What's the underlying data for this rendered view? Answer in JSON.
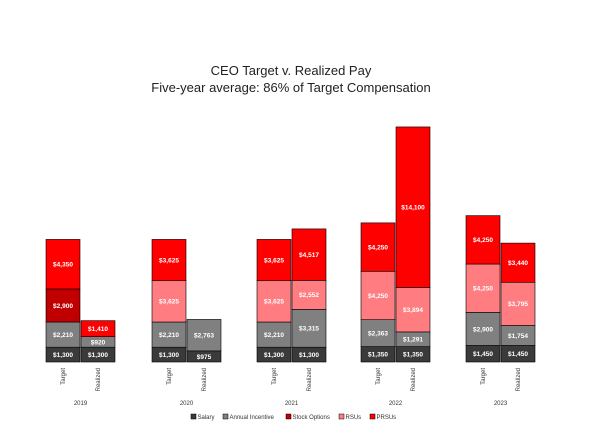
{
  "chart_data": {
    "type": "bar",
    "stacked": true,
    "title": "CEO Target v. Realized Pay",
    "subtitle": "Five-year average: 86% of Target Compensation",
    "groups": [
      "2019",
      "2020",
      "2021",
      "2022",
      "2023"
    ],
    "bar_kinds": [
      "Target",
      "Realized"
    ],
    "series": [
      {
        "name": "Salary",
        "color": "#3a3a3a",
        "values": [
          1300,
          1300,
          1300,
          975,
          1300,
          1300,
          1350,
          1350,
          1450,
          1450
        ],
        "labels": [
          "$1,300",
          "$1,300",
          "$1,300",
          "$975",
          "$1,300",
          "$1,300",
          "$1,350",
          "$1,350",
          "$1,450",
          "$1,450"
        ]
      },
      {
        "name": "Annual Incentive",
        "color": "#808080",
        "values": [
          2210,
          920,
          2210,
          2763,
          2210,
          3315,
          2363,
          1291,
          2900,
          1754
        ],
        "labels": [
          "$2,210",
          "$920",
          "$2,210",
          "$2,763",
          "$2,210",
          "$3,315",
          "$2,363",
          "$1,291",
          "$2,900",
          "$1,754"
        ]
      },
      {
        "name": "Stock Options",
        "color": "#c00000",
        "values": [
          2900,
          0,
          0,
          0,
          0,
          0,
          0,
          0,
          0,
          0
        ],
        "labels": [
          "$2,900",
          "",
          "",
          "",
          "",
          "",
          "",
          "",
          "",
          ""
        ]
      },
      {
        "name": "RSUs",
        "color": "#ff7c80",
        "values": [
          0,
          0,
          3625,
          0,
          3625,
          2552,
          4250,
          3894,
          4250,
          3795
        ],
        "labels": [
          "",
          "",
          "$3,625",
          "",
          "$3,625",
          "$2,552",
          "$4,250",
          "$3,894",
          "$4,250",
          "$3,795"
        ]
      },
      {
        "name": "PRSUs",
        "color": "#ff0000",
        "values": [
          4350,
          1410,
          3625,
          0,
          3625,
          4517,
          4250,
          14100,
          4250,
          3440
        ],
        "labels": [
          "$4,350",
          "$1,410",
          "$3,625",
          "",
          "$3,625",
          "$4,517",
          "$4,250",
          "$14,100",
          "$4,250",
          "$3,440"
        ]
      }
    ],
    "ylim": [
      0,
      23000
    ],
    "legend_position": "bottom",
    "grid": false
  }
}
